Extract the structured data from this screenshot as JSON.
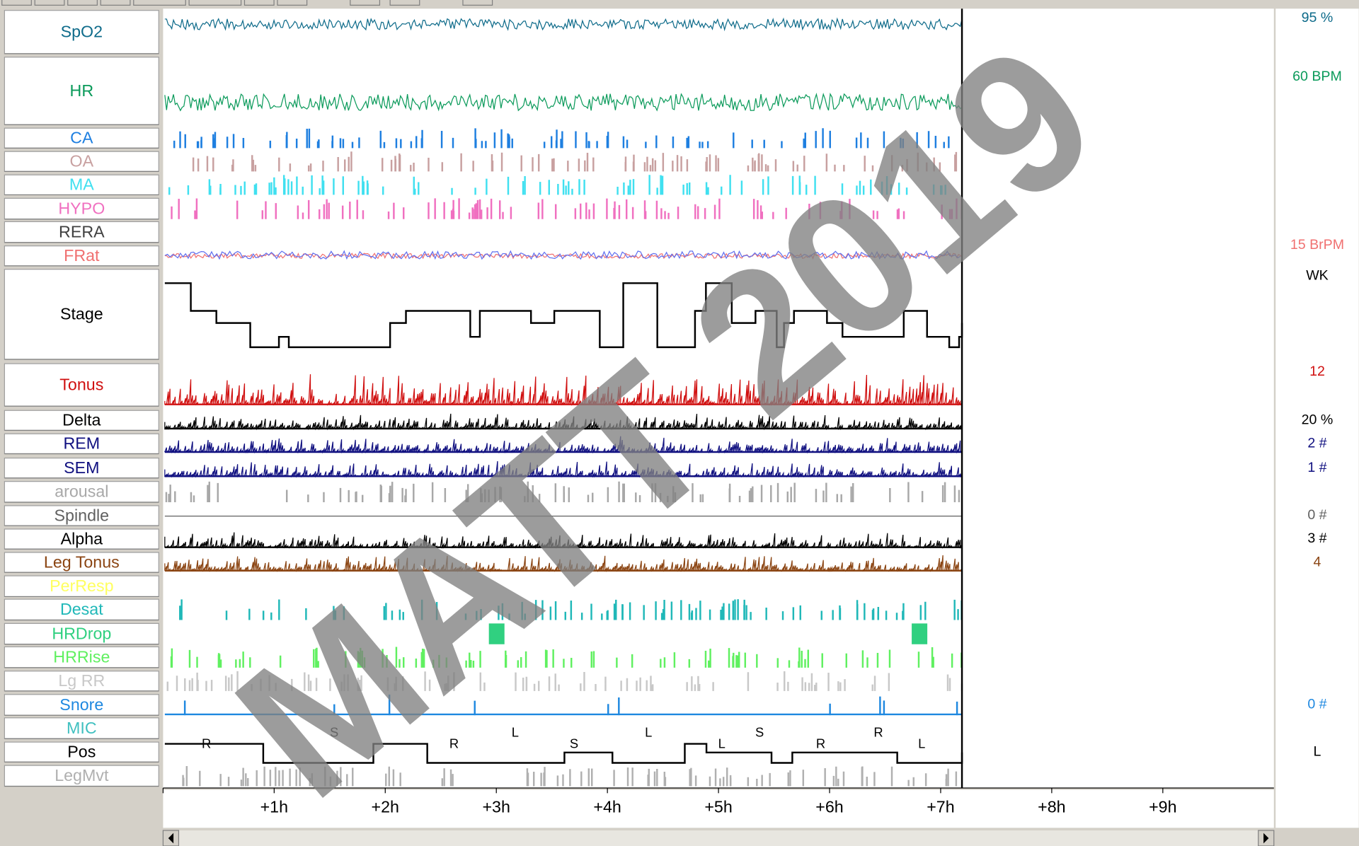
{
  "channels": [
    {
      "label": "SpO2",
      "color": "#0e6b8a",
      "value": "95 %"
    },
    {
      "label": "HR",
      "color": "#0a9a5a",
      "value": "60 BPM"
    },
    {
      "label": "CA",
      "color": "#1e7fe0"
    },
    {
      "label": "OA",
      "color": "#c8a0a0"
    },
    {
      "label": "MA",
      "color": "#40e0f0"
    },
    {
      "label": "HYPO",
      "color": "#f070c0"
    },
    {
      "label": "RERA",
      "color": "#404040"
    },
    {
      "label": "FRat",
      "color": "#f07070",
      "value": "15 BrPM"
    },
    {
      "label": "Stage",
      "color": "#000000",
      "value": "WK"
    },
    {
      "label": "Tonus",
      "color": "#d01010",
      "value": "12"
    },
    {
      "label": "Delta",
      "color": "#000000",
      "value": "20 %"
    },
    {
      "label": "REM",
      "color": "#101080",
      "value": "2 #"
    },
    {
      "label": "SEM",
      "color": "#101080",
      "value": "1 #"
    },
    {
      "label": "arousal",
      "color": "#a8a8a8"
    },
    {
      "label": "Spindle",
      "color": "#606060",
      "value": "0 #"
    },
    {
      "label": "Alpha",
      "color": "#000000",
      "value": "3 #"
    },
    {
      "label": "Leg Tonus",
      "color": "#8b4513",
      "value": "4"
    },
    {
      "label": "PerResp",
      "color": "#ffff60"
    },
    {
      "label": "Desat",
      "color": "#20b8b8"
    },
    {
      "label": "HRDrop",
      "color": "#30d080"
    },
    {
      "label": "HRRise",
      "color": "#60f060"
    },
    {
      "label": "Lg RR",
      "color": "#c8c8c8"
    },
    {
      "label": "Snore",
      "color": "#1e88e0",
      "value": "0 #"
    },
    {
      "label": "MIC",
      "color": "#40c0c0"
    },
    {
      "label": "Pos",
      "color": "#000000",
      "value": "L"
    },
    {
      "label": "LegMvt",
      "color": "#b0b0b0"
    }
  ],
  "time_axis": {
    "range": [
      0,
      10
    ],
    "ticks": [
      {
        "value": 1,
        "label": "+1h"
      },
      {
        "value": 2,
        "label": "+2h"
      },
      {
        "value": 3,
        "label": "+3h"
      },
      {
        "value": 4,
        "label": "+4h"
      },
      {
        "value": 5,
        "label": "+5h"
      },
      {
        "value": 6,
        "label": "+6h"
      },
      {
        "value": 7,
        "label": "+7h"
      },
      {
        "value": 8,
        "label": "+8h"
      },
      {
        "value": 9,
        "label": "+9h"
      }
    ]
  },
  "position_labels": [
    {
      "label": "R",
      "time": 0.39
    },
    {
      "label": "S",
      "time": 1.54
    },
    {
      "label": "R",
      "time": 2.62
    },
    {
      "label": "L",
      "time": 3.17
    },
    {
      "label": "S",
      "time": 3.7
    },
    {
      "label": "L",
      "time": 4.37
    },
    {
      "label": "L",
      "time": 5.03
    },
    {
      "label": "S",
      "time": 5.37
    },
    {
      "label": "R",
      "time": 5.92
    },
    {
      "label": "R",
      "time": 6.44
    },
    {
      "label": "L",
      "time": 6.83
    }
  ],
  "watermark": "MATT 2019"
}
